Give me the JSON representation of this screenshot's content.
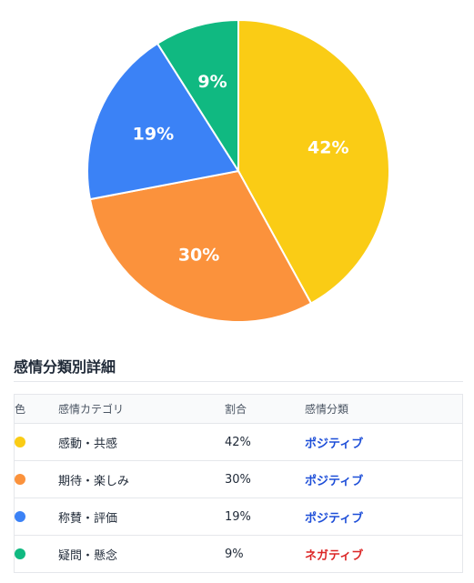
{
  "chart_data": {
    "type": "pie",
    "slices": [
      {
        "label": "感動・共感",
        "value": 42,
        "display": "42%",
        "color": "#facc15"
      },
      {
        "label": "期待・楽しみ",
        "value": 30,
        "display": "30%",
        "color": "#fb923c"
      },
      {
        "label": "称賛・評価",
        "value": 19,
        "display": "19%",
        "color": "#3b82f6"
      },
      {
        "label": "疑問・懸念",
        "value": 9,
        "display": "9%",
        "color": "#10b981"
      }
    ],
    "start_angle_deg": 0,
    "direction": "clockwise"
  },
  "section": {
    "title": "感情分類別詳細"
  },
  "table": {
    "headers": {
      "color": "色",
      "category": "感情カテゴリ",
      "ratio": "割合",
      "sentiment": "感情分類"
    },
    "rows": [
      {
        "color": "#facc15",
        "category": "感動・共感",
        "ratio": "42%",
        "sentiment": "ポジティブ",
        "sentiment_color": "#1d4ed8"
      },
      {
        "color": "#fb923c",
        "category": "期待・楽しみ",
        "ratio": "30%",
        "sentiment": "ポジティブ",
        "sentiment_color": "#1d4ed8"
      },
      {
        "color": "#3b82f6",
        "category": "称賛・評価",
        "ratio": "19%",
        "sentiment": "ポジティブ",
        "sentiment_color": "#1d4ed8"
      },
      {
        "color": "#10b981",
        "category": "疑問・懸念",
        "ratio": "9%",
        "sentiment": "ネガティブ",
        "sentiment_color": "#dc2626"
      }
    ]
  }
}
